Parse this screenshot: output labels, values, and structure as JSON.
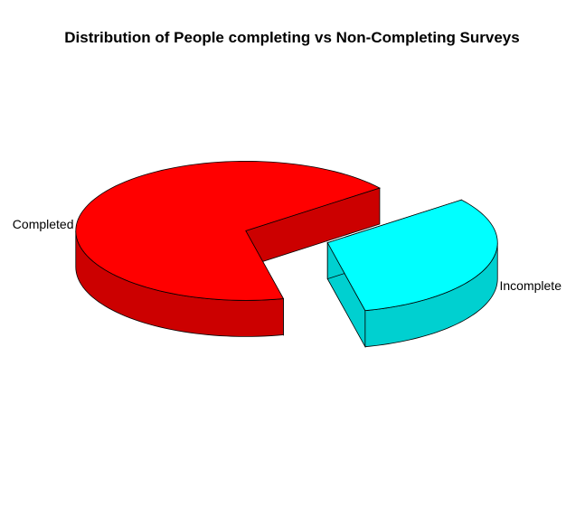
{
  "chart_data": {
    "type": "pie",
    "title": "Distribution of People completing vs Non-Completing Surveys",
    "style": "3d-exploded",
    "slices": [
      {
        "label": "Completed",
        "value": 68,
        "color": "#FF0000",
        "side_color": "#CC0000"
      },
      {
        "label": "Incomplete",
        "value": 32,
        "color": "#00FFFF",
        "side_color": "#00D0D0"
      }
    ]
  }
}
